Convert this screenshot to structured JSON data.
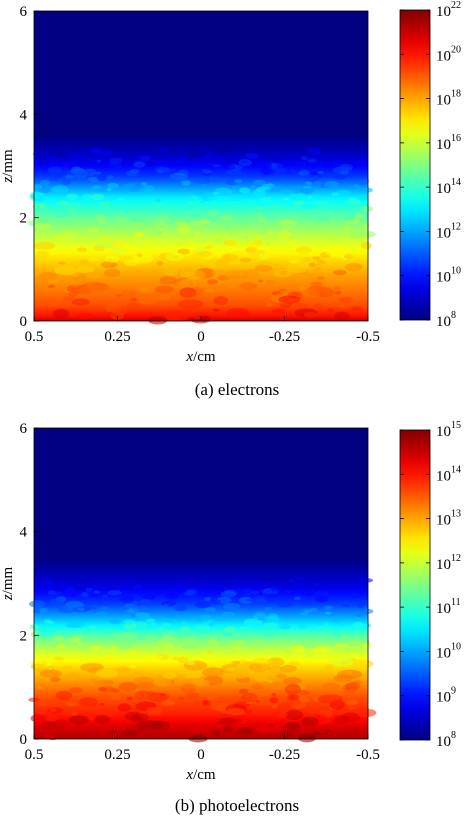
{
  "chart_data": [
    {
      "type": "heatmap",
      "caption": "(a) electrons",
      "xlabel_var": "x",
      "xlabel_unit": "/cm",
      "ylabel_var": "z",
      "ylabel_unit": "/mm",
      "xlim": [
        0.5,
        -0.5
      ],
      "ylim": [
        0,
        6
      ],
      "xticks": [
        "0.5",
        "0.25",
        "0",
        "-0.25",
        "-0.5"
      ],
      "yticks": [
        "0",
        "2",
        "4",
        "6"
      ],
      "colorbar": {
        "scale": "log",
        "range": [
          100000000.0,
          1e+22
        ],
        "tick_exponents": [
          "8",
          "10",
          "12",
          "14",
          "16",
          "18",
          "20",
          "22"
        ]
      },
      "profile": {
        "z": [
          0.0,
          0.1,
          0.3,
          0.6,
          0.9,
          1.2,
          1.6,
          2.0,
          2.4,
          2.8,
          3.2,
          3.6,
          6.0
        ],
        "log_density": [
          21.0,
          20.0,
          19.2,
          18.6,
          18.0,
          17.2,
          16.0,
          14.6,
          13.0,
          10.5,
          9.0,
          8.0,
          8.0
        ]
      },
      "colormap": "jet"
    },
    {
      "type": "heatmap",
      "caption": "(b) photoelectrons",
      "xlabel_var": "x",
      "xlabel_unit": "/cm",
      "ylabel_var": "z",
      "ylabel_unit": "/mm",
      "xlim": [
        0.5,
        -0.5
      ],
      "ylim": [
        0,
        6
      ],
      "xticks": [
        "0.5",
        "0.25",
        "0",
        "-0.25",
        "-0.5"
      ],
      "yticks": [
        "0",
        "2",
        "4",
        "6"
      ],
      "colorbar": {
        "scale": "log",
        "range": [
          100000000.0,
          1000000000000000.0
        ],
        "tick_exponents": [
          "8",
          "9",
          "10",
          "11",
          "12",
          "13",
          "14",
          "15"
        ]
      },
      "profile": {
        "z": [
          0.0,
          0.2,
          0.5,
          0.8,
          1.1,
          1.4,
          1.7,
          2.0,
          2.3,
          2.6,
          3.0,
          3.5,
          6.0
        ],
        "log_density": [
          14.7,
          14.4,
          13.9,
          13.6,
          13.1,
          12.6,
          12.0,
          11.2,
          10.2,
          9.3,
          8.6,
          8.0,
          8.0
        ]
      },
      "colormap": "jet"
    }
  ]
}
